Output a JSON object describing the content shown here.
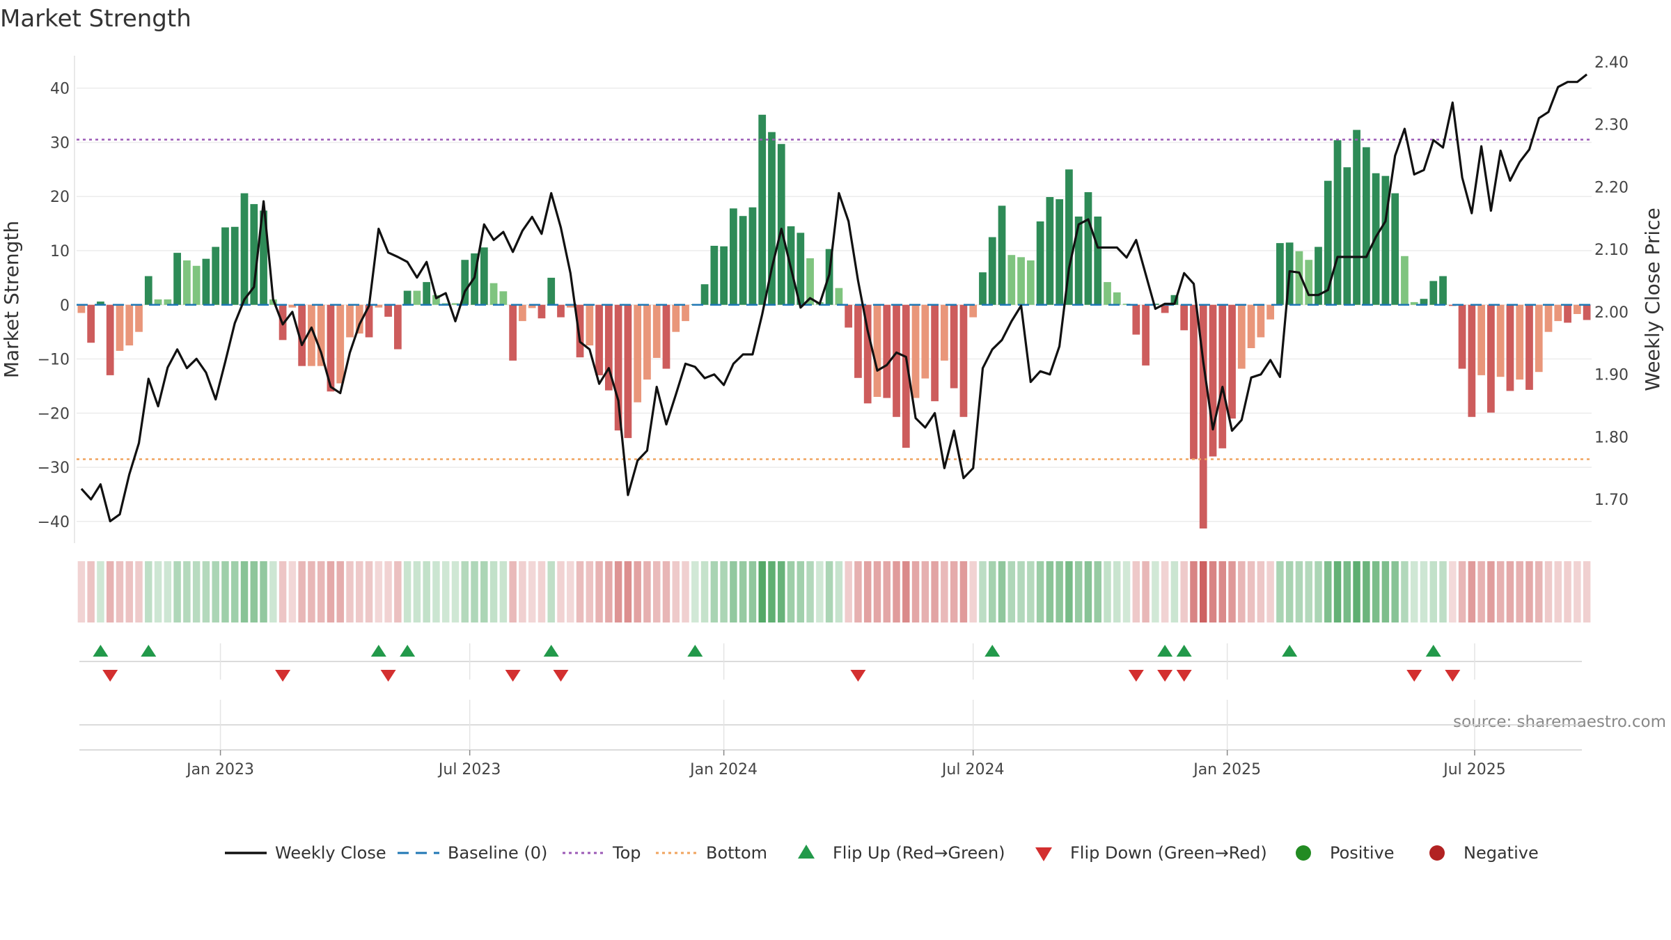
{
  "chart_data": {
    "type": "bar",
    "title": "Market Strength",
    "source": "source: sharemaestro.com",
    "ylabel": "Market Strength",
    "ylabel_right": "Weekly Close Price",
    "ylim": [
      -44,
      46
    ],
    "ylim_right": [
      1.63,
      2.41
    ],
    "top_level": 30.5,
    "bottom_level": -28.5,
    "yticks": [
      40,
      30,
      20,
      10,
      0,
      -10,
      -20,
      -30,
      -40
    ],
    "ytick_labels": [
      "40",
      "30",
      "20",
      "10",
      "0",
      "−10",
      "−20",
      "−30",
      "−40"
    ],
    "yticks_right": [
      "2.40",
      "2.30",
      "2.20",
      "2.10",
      "2.00",
      "1.90",
      "1.80",
      "1.70"
    ],
    "x_ticks": [
      {
        "label": "Jan 2023",
        "week": 15
      },
      {
        "label": "Jul 2023",
        "week": 41
      },
      {
        "label": "Jan 2024",
        "week": 67.5
      },
      {
        "label": "Jul 2024",
        "week": 93.5
      },
      {
        "label": "Jan 2025",
        "week": 120
      },
      {
        "label": "Jul 2025",
        "week": 145.8
      }
    ],
    "strength": [
      -1.5,
      -7,
      0.6,
      -13,
      -8.5,
      -7.5,
      -5,
      5.3,
      1,
      1,
      9.6,
      8.2,
      7.2,
      8.5,
      10.7,
      14.3,
      14.4,
      20.6,
      18.6,
      17.4,
      1,
      -6.5,
      -0.5,
      -11.3,
      -11.3,
      -11.3,
      -16,
      -14.5,
      -6,
      -5.3,
      -6,
      -0.5,
      -2.2,
      -8.2,
      2.6,
      2.6,
      4.2,
      1.8,
      0.3,
      0.3,
      8.3,
      9.5,
      10.6,
      4,
      2.5,
      -10.3,
      -3,
      -0.6,
      -2.5,
      5,
      -2.3,
      -0.5,
      -9.7,
      -7.5,
      -13,
      -15.8,
      -23.2,
      -24.6,
      -18,
      -13.8,
      -9.8,
      -11.8,
      -5,
      -3,
      0.1,
      3.8,
      10.9,
      10.8,
      17.8,
      16.4,
      18,
      35.1,
      31.9,
      29.7,
      14.5,
      13.3,
      8.6,
      0.5,
      10.3,
      3.1,
      -4.2,
      -13.5,
      -18.2,
      -17,
      -17.2,
      -20.7,
      -26.4,
      -17.2,
      -13.6,
      -17.8,
      -10.3,
      -15.4,
      -20.7,
      -2.3,
      6,
      12.5,
      18.3,
      9.2,
      8.8,
      8.2,
      15.4,
      19.9,
      19.5,
      25,
      16.3,
      20.8,
      16.3,
      4.2,
      2.3,
      0.2,
      -5.5,
      -11.2,
      0.2,
      -1.5,
      1.8,
      -4.7,
      -28.5,
      -41.3,
      -28,
      -26.5,
      -21,
      -11.8,
      -8,
      -6,
      -2.7,
      11.4,
      11.5,
      9.9,
      8.3,
      10.7,
      22.9,
      30.4,
      25.4,
      32.3,
      29.1,
      24.3,
      23.8,
      20.6,
      9,
      0.5,
      1.1,
      4.4,
      5.3,
      -0.2,
      -11.8,
      -20.7,
      -13,
      -19.9,
      -13.3,
      -15.9,
      -13.8,
      -15.7,
      -12.4,
      -5,
      -3,
      -3.3,
      -1.7,
      -2.8
    ],
    "weekly_close": [
      1.717,
      1.7,
      1.724,
      1.665,
      1.676,
      1.74,
      1.79,
      1.893,
      1.849,
      1.911,
      1.94,
      1.91,
      1.925,
      1.903,
      1.86,
      1.92,
      1.982,
      2.02,
      2.04,
      2.177,
      2.02,
      1.98,
      2,
      1.947,
      1.975,
      1.935,
      1.88,
      1.87,
      1.935,
      1.98,
      2.01,
      2.133,
      2.095,
      2.088,
      2.08,
      2.055,
      2.08,
      2.022,
      2.03,
      1.985,
      2.033,
      2.055,
      2.14,
      2.115,
      2.128,
      2.096,
      2.13,
      2.152,
      2.125,
      2.19,
      2.135,
      2.062,
      1.952,
      1.94,
      1.885,
      1.91,
      1.858,
      1.707,
      1.762,
      1.778,
      1.88,
      1.82,
      1.868,
      1.917,
      1.912,
      1.894,
      1.9,
      1.883,
      1.917,
      1.932,
      1.932,
      1.996,
      2.07,
      2.133,
      2.07,
      2.007,
      2.022,
      2.013,
      2.06,
      2.19,
      2.145,
      2.05,
      1.97,
      1.906,
      1.915,
      1.935,
      1.928,
      1.83,
      1.815,
      1.838,
      1.75,
      1.81,
      1.734,
      1.75,
      1.91,
      1.94,
      1.955,
      1.985,
      2.01,
      1.888,
      1.905,
      1.9,
      1.945,
      2.07,
      2.14,
      2.148,
      2.103,
      2.103,
      2.103,
      2.087,
      2.115,
      2.06,
      2.005,
      2.013,
      2.013,
      2.062,
      2.045,
      1.92,
      1.812,
      1.88,
      1.81,
      1.827,
      1.895,
      1.9,
      1.923,
      1.896,
      2.065,
      2.063,
      2.027,
      2.027,
      2.035,
      2.088,
      2.088,
      2.088,
      2.088,
      2.12,
      2.145,
      2.25,
      2.293,
      2.22,
      2.227,
      2.275,
      2.263,
      2.335,
      2.215,
      2.158,
      2.265,
      2.162,
      2.258,
      2.21,
      2.24,
      2.26,
      2.31,
      2.32,
      2.36,
      2.368,
      2.368,
      2.38
    ],
    "flips_up": [
      2,
      7,
      31,
      34,
      49,
      64,
      95,
      113,
      115,
      126,
      141
    ],
    "flips_down": [
      3,
      21,
      32,
      45,
      50,
      81,
      110,
      113,
      115,
      139,
      143
    ],
    "colors": {
      "green_strong": "#2e8b57",
      "green_light": "#7fc47f",
      "red_strong": "#cd5c5c",
      "red_light": "#e9967a",
      "flip_up": "#22994a",
      "flip_down": "#d32f2f",
      "close_line": "#111111",
      "baseline": "#1f77b4",
      "top": "#9b59b6",
      "bottom": "#f0a35e",
      "positive": "#228b22",
      "negative": "#b22222"
    },
    "legend": [
      {
        "label": "Weekly Close",
        "marker": "line"
      },
      {
        "label": "Baseline (0)",
        "marker": "dash"
      },
      {
        "label": "Top",
        "marker": "dot-purple"
      },
      {
        "label": "Bottom",
        "marker": "dot-orange"
      },
      {
        "label": "Flip Up (Red→Green)",
        "marker": "triangle-up"
      },
      {
        "label": "Flip Down (Green→Red)",
        "marker": "triangle-down"
      },
      {
        "label": "Positive",
        "marker": "circle-green"
      },
      {
        "label": "Negative",
        "marker": "circle-red"
      }
    ]
  }
}
